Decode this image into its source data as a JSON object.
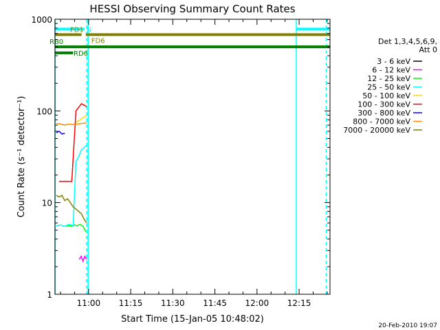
{
  "chart_data": {
    "type": "line",
    "title": "HESSI Observing Summary Count Rates",
    "xlabel": "Start Time (15-Jan-05 10:48:02)",
    "ylabel": "Count Rate (s⁻¹ detector⁻¹)",
    "yscale": "log",
    "ylim": [
      1,
      1000
    ],
    "xlim": [
      "10:48:02",
      "12:26:00"
    ],
    "y_ticks": [
      "1",
      "10",
      "100",
      "1000"
    ],
    "x_ticks": [
      "11:00",
      "11:15",
      "11:30",
      "11:45",
      "12:00",
      "12:15"
    ],
    "legend_header": [
      "Det 1,3,4,5,6,9,",
      "Att 0"
    ],
    "legend_placement": "right",
    "grid": false,
    "series": [
      {
        "name": "3 - 6 keV",
        "color": "#000000",
        "x": [
          "10:58:00",
          "11:00:00"
        ],
        "y": [
          null,
          null
        ]
      },
      {
        "name": "6 - 12 keV",
        "color": "#ff00ff",
        "x": [
          "10:56:40",
          "10:57:20",
          "10:58:00",
          "10:58:40",
          "10:59:20"
        ],
        "y": [
          2.4,
          2.6,
          2.3,
          2.6,
          2.4
        ]
      },
      {
        "name": "12 - 25 keV",
        "color": "#00ff00",
        "x": [
          "10:52:00",
          "10:53:00",
          "10:54:00",
          "10:55:00",
          "10:56:00",
          "10:57:00",
          "10:58:00",
          "10:59:00"
        ],
        "y": [
          5.5,
          5.6,
          5.5,
          5.7,
          5.6,
          5.8,
          5.5,
          4.8
        ]
      },
      {
        "name": "25 - 50 keV",
        "color": "#00ffff",
        "x": [
          "10:48:30",
          "10:50:00",
          "10:51:30",
          "10:53:00",
          "10:54:30",
          "10:55:30",
          "10:56:30",
          "10:57:30",
          "10:58:30",
          "10:59:20"
        ],
        "y": [
          5.6,
          5.7,
          5.5,
          5.8,
          5.6,
          28,
          32,
          38,
          40,
          42
        ]
      },
      {
        "name": "50 - 100 keV",
        "color": "#ffd700",
        "x": [
          "10:55:30",
          "10:56:30",
          "10:57:30",
          "10:58:30",
          "10:59:20"
        ],
        "y": [
          75,
          78,
          82,
          86,
          90
        ]
      },
      {
        "name": "100 - 300 keV",
        "color": "#ff0000",
        "x": [
          "10:49:30",
          "10:51:00",
          "10:52:30",
          "10:54:00",
          "10:55:30",
          "10:56:30",
          "10:57:30",
          "10:58:30",
          "10:59:20"
        ],
        "y": [
          17,
          17,
          17,
          17,
          100,
          110,
          120,
          115,
          112
        ]
      },
      {
        "name": "300 - 800 keV",
        "color": "#0000ff",
        "x": [
          "10:48:30",
          "10:49:30",
          "10:50:30",
          "10:51:30"
        ],
        "y": [
          58,
          60,
          56,
          57
        ]
      },
      {
        "name": "800 - 7000 keV",
        "color": "#ff8c00",
        "x": [
          "10:48:30",
          "10:50:00",
          "10:51:30",
          "10:53:00",
          "10:54:30",
          "10:56:00",
          "10:57:30",
          "10:59:20"
        ],
        "y": [
          73,
          72,
          70,
          72,
          71,
          72,
          73,
          74
        ]
      },
      {
        "name": "7000 - 20000 keV",
        "color": "#808000",
        "x": [
          "10:48:30",
          "10:49:30",
          "10:50:30",
          "10:51:30",
          "10:52:30",
          "10:53:30",
          "10:54:30",
          "10:55:30",
          "10:56:30",
          "10:57:30",
          "10:58:30",
          "10:59:20"
        ],
        "y": [
          12,
          11.5,
          12,
          10.5,
          11,
          10,
          9,
          8.5,
          8,
          7.5,
          6.5,
          6
        ]
      }
    ],
    "bars": [
      {
        "label": "N",
        "color": "#00ffff",
        "level": 780,
        "segments": [
          [
            "10:48:02",
            "10:58:30"
          ],
          [
            "12:14:00",
            "12:26:00"
          ]
        ]
      },
      {
        "label": "FD1",
        "color": "#808000",
        "level": 680,
        "segments": [
          [
            "10:48:02",
            "10:57:30"
          ]
        ]
      },
      {
        "label": "FD6",
        "color": "#808000",
        "level": 680,
        "segments": [
          [
            "10:59:00",
            "12:26:00"
          ]
        ]
      },
      {
        "label": "RB0",
        "color": "#008000",
        "level": 500,
        "segments": [
          [
            "10:48:02",
            "12:26:00"
          ]
        ]
      },
      {
        "label": "RD6",
        "color": "#008000",
        "level": 430,
        "segments": [
          [
            "10:48:02",
            "10:54:30"
          ]
        ]
      }
    ],
    "vlines": [
      {
        "x": "10:48:02",
        "style": "solid",
        "color": "#00ffff"
      },
      {
        "x": "10:59:20",
        "style": "dashed",
        "color": "#00ffff"
      },
      {
        "x": "10:59:50",
        "style": "solid",
        "color": "#00ffff"
      },
      {
        "x": "12:14:00",
        "style": "solid",
        "color": "#00ffff"
      },
      {
        "x": "12:24:40",
        "style": "dashed",
        "color": "#00ffff"
      }
    ]
  },
  "footer_date": "20-Feb-2010 19:07"
}
